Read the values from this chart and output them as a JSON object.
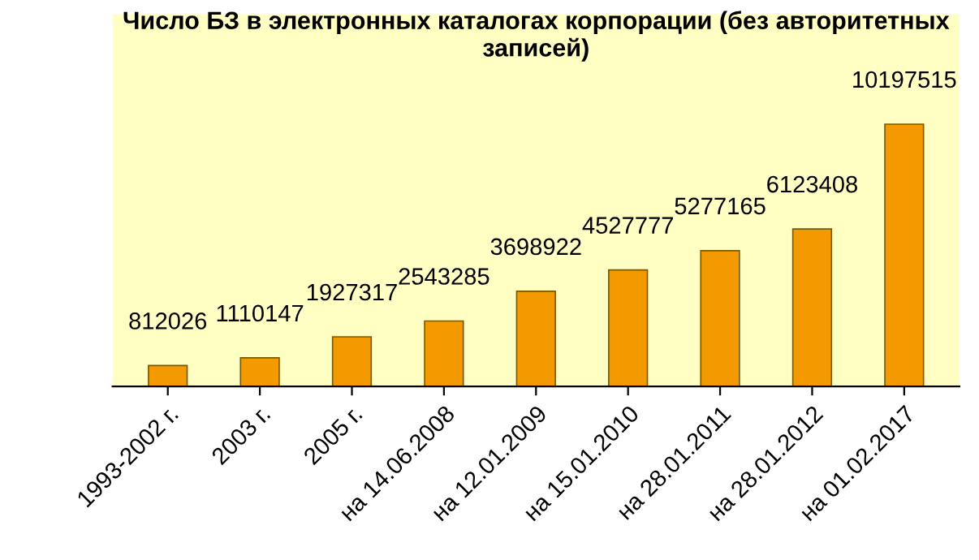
{
  "chart_data": {
    "type": "bar",
    "title": "Число БЗ в электронных каталогах корпорации (без авторитетных записей)",
    "categories": [
      "1993-2002 г.",
      "2003 г.",
      "2005 г.",
      "на 14.06.2008",
      "на 12.01.2009",
      "на 15.01.2010",
      "на 28.01.2011",
      "на 28.01.2012",
      "на 01.02.2017"
    ],
    "values": [
      812026,
      1110147,
      1927317,
      2543285,
      3698922,
      4527777,
      5277165,
      6123408,
      10197515
    ],
    "color": "#f29a00",
    "data_labels": true,
    "tick_labels": "x",
    "grid": false,
    "legend": false
  }
}
